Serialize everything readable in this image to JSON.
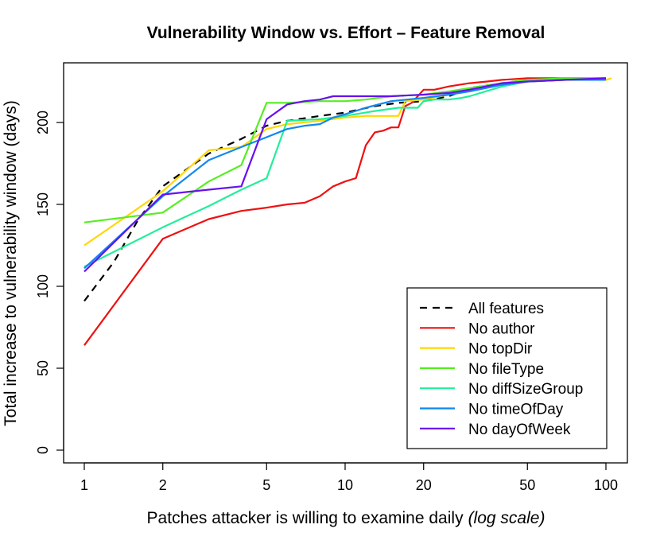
{
  "chart_data": {
    "type": "line",
    "title": "Vulnerability Window vs. Effort – Feature Removal",
    "xlabel": "Patches attacker is willing to examine daily",
    "xlabel_note": "(log scale)",
    "ylabel": "Total increase to vulnerability window (days)",
    "x_scale": "log",
    "xlim": [
      1,
      102
    ],
    "ylim": [
      0,
      227
    ],
    "x_ticks": [
      1,
      2,
      5,
      10,
      20,
      50,
      100
    ],
    "x_tick_labels": [
      "1",
      "2",
      "5",
      "10",
      "20",
      "50",
      "100"
    ],
    "y_ticks": [
      0,
      50,
      100,
      150,
      200
    ],
    "y_tick_labels": [
      "0",
      "50",
      "100",
      "150",
      "200"
    ],
    "grid": false,
    "legend_position": "bottom-right",
    "series": [
      {
        "name": "All features",
        "color": "#000000",
        "dashed": true,
        "x": [
          1,
          1.3,
          1.6,
          2,
          3,
          4,
          5,
          6,
          8,
          10,
          13,
          16,
          20,
          25,
          30,
          40,
          50,
          70,
          100
        ],
        "y": [
          91,
          115,
          140,
          161,
          181,
          190,
          198,
          201,
          204,
          206,
          210,
          212,
          213,
          216,
          221,
          224,
          226,
          226,
          227
        ]
      },
      {
        "name": "No author",
        "color": "#ee1111",
        "dashed": false,
        "x": [
          1,
          2,
          3,
          4,
          5,
          6,
          7,
          8,
          9,
          10,
          11,
          12,
          13,
          14,
          15,
          16,
          17,
          18,
          19,
          20,
          22,
          25,
          30,
          35,
          40,
          50,
          70,
          100
        ],
        "y": [
          64,
          129,
          141,
          146,
          148,
          150,
          151,
          155,
          161,
          164,
          166,
          186,
          194,
          195,
          197,
          197,
          210,
          212,
          216,
          220,
          220,
          222,
          224,
          225,
          226,
          227,
          227,
          227
        ]
      },
      {
        "name": "No topDir",
        "color": "#ffd700",
        "dashed": false,
        "x": [
          1,
          2,
          3,
          4,
          5,
          6,
          8,
          10,
          12,
          14,
          16,
          17,
          20,
          25,
          30,
          40,
          50,
          70,
          100,
          105
        ],
        "y": [
          125,
          158,
          183,
          185,
          196,
          199,
          201,
          203,
          204,
          204,
          204,
          213,
          214,
          217,
          221,
          223,
          225,
          226,
          226,
          227
        ]
      },
      {
        "name": "No fileType",
        "color": "#55ee22",
        "dashed": false,
        "x": [
          1,
          2,
          3,
          4,
          5,
          6,
          8,
          10,
          12,
          15,
          20,
          25,
          30,
          40,
          50,
          70,
          100
        ],
        "y": [
          139,
          145,
          164,
          174,
          212,
          212,
          213,
          213,
          214,
          216,
          217,
          219,
          221,
          224,
          226,
          227,
          227
        ]
      },
      {
        "name": "No diffSizeGroup",
        "color": "#22ee99",
        "dashed": false,
        "x": [
          1,
          2,
          3,
          4,
          5,
          6,
          8,
          10,
          13,
          16,
          19,
          20,
          22,
          25,
          28,
          30,
          40,
          50,
          70,
          100
        ],
        "y": [
          112,
          136,
          149,
          159,
          166,
          201,
          202,
          204,
          207,
          209,
          209,
          213,
          214,
          214,
          215,
          216,
          222,
          225,
          226,
          226
        ]
      },
      {
        "name": "No timeOfDay",
        "color": "#1188ee",
        "dashed": false,
        "x": [
          1,
          2,
          3,
          4,
          5,
          6,
          7,
          8,
          9,
          10,
          12,
          15,
          20,
          25,
          30,
          40,
          50,
          70,
          100
        ],
        "y": [
          111,
          155,
          177,
          185,
          191,
          196,
          198,
          199,
          203,
          205,
          209,
          213,
          215,
          217,
          219,
          223,
          225,
          226,
          226
        ]
      },
      {
        "name": "No dayOfWeek",
        "color": "#6611ee",
        "dashed": false,
        "x": [
          1,
          2,
          3,
          4,
          5,
          6,
          7,
          8,
          9,
          10,
          15,
          20,
          25,
          30,
          40,
          50,
          70,
          100
        ],
        "y": [
          109,
          156,
          159,
          161,
          202,
          211,
          213,
          214,
          216,
          216,
          216,
          217,
          218,
          220,
          224,
          225,
          226,
          227
        ]
      }
    ]
  }
}
